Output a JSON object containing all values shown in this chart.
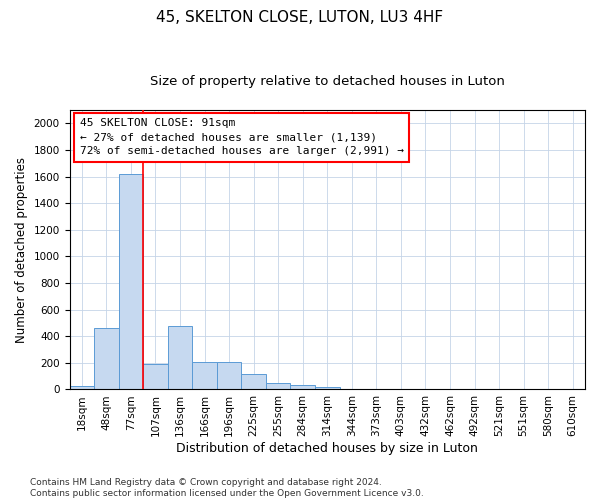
{
  "title": "45, SKELTON CLOSE, LUTON, LU3 4HF",
  "subtitle": "Size of property relative to detached houses in Luton",
  "xlabel": "Distribution of detached houses by size in Luton",
  "ylabel": "Number of detached properties",
  "categories": [
    "18sqm",
    "48sqm",
    "77sqm",
    "107sqm",
    "136sqm",
    "166sqm",
    "196sqm",
    "225sqm",
    "255sqm",
    "284sqm",
    "314sqm",
    "344sqm",
    "373sqm",
    "403sqm",
    "432sqm",
    "462sqm",
    "492sqm",
    "521sqm",
    "551sqm",
    "580sqm",
    "610sqm"
  ],
  "values": [
    25,
    460,
    1620,
    195,
    480,
    210,
    210,
    115,
    45,
    30,
    20,
    0,
    0,
    0,
    0,
    0,
    0,
    0,
    0,
    0,
    0
  ],
  "bar_color": "#c6d9f0",
  "bar_edge_color": "#5b9bd5",
  "property_line_x": 2.5,
  "property_line_color": "red",
  "annotation_text": "45 SKELTON CLOSE: 91sqm\n← 27% of detached houses are smaller (1,139)\n72% of semi-detached houses are larger (2,991) →",
  "annotation_box_color": "red",
  "annotation_box_facecolor": "white",
  "ylim": [
    0,
    2100
  ],
  "yticks": [
    0,
    200,
    400,
    600,
    800,
    1000,
    1200,
    1400,
    1600,
    1800,
    2000
  ],
  "grid_color": "#c5d5e8",
  "background_color": "#ffffff",
  "footer": "Contains HM Land Registry data © Crown copyright and database right 2024.\nContains public sector information licensed under the Open Government Licence v3.0.",
  "title_fontsize": 11,
  "subtitle_fontsize": 9.5,
  "xlabel_fontsize": 9,
  "ylabel_fontsize": 8.5,
  "tick_fontsize": 7.5,
  "annotation_fontsize": 8,
  "footer_fontsize": 6.5
}
